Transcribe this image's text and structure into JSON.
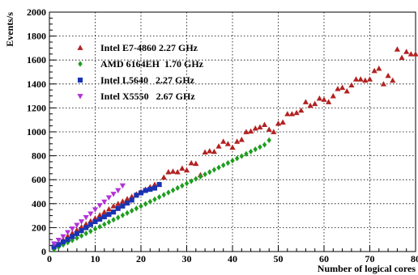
{
  "chart_data": {
    "type": "scatter",
    "title": "",
    "xlabel": "Number of logical cores",
    "ylabel": "Events/s",
    "xlim": [
      0,
      80
    ],
    "ylim": [
      0,
      2000
    ],
    "x_ticks": [
      0,
      10,
      20,
      30,
      40,
      50,
      60,
      70,
      80
    ],
    "y_ticks": [
      0,
      200,
      400,
      600,
      800,
      1000,
      1200,
      1400,
      1600,
      1800,
      2000
    ],
    "grid": true,
    "legend_position": "top-left",
    "series": [
      {
        "name": "Intel E7-4860 2.27 GHz",
        "marker": "triangle-up",
        "color": "#b22222",
        "points": [
          [
            1,
            57
          ],
          [
            2,
            70
          ],
          [
            3,
            100
          ],
          [
            4,
            130
          ],
          [
            5,
            155
          ],
          [
            6,
            180
          ],
          [
            7,
            205
          ],
          [
            8,
            230
          ],
          [
            9,
            255
          ],
          [
            10,
            280
          ],
          [
            11,
            305
          ],
          [
            12,
            330
          ],
          [
            13,
            355
          ],
          [
            14,
            380
          ],
          [
            15,
            400
          ],
          [
            16,
            420
          ],
          [
            17,
            440
          ],
          [
            18,
            460
          ],
          [
            19,
            480
          ],
          [
            20,
            500
          ],
          [
            21,
            520
          ],
          [
            22,
            540
          ],
          [
            23,
            560
          ],
          [
            24,
            560
          ],
          [
            25,
            620
          ],
          [
            26,
            665
          ],
          [
            27,
            670
          ],
          [
            28,
            665
          ],
          [
            29,
            695
          ],
          [
            30,
            680
          ],
          [
            31,
            740
          ],
          [
            32,
            735
          ],
          [
            33,
            640
          ],
          [
            34,
            830
          ],
          [
            35,
            840
          ],
          [
            36,
            835
          ],
          [
            37,
            880
          ],
          [
            38,
            920
          ],
          [
            39,
            900
          ],
          [
            40,
            870
          ],
          [
            41,
            920
          ],
          [
            42,
            935
          ],
          [
            43,
            1000
          ],
          [
            44,
            1005
          ],
          [
            45,
            1030
          ],
          [
            46,
            1040
          ],
          [
            47,
            1060
          ],
          [
            48,
            1020
          ],
          [
            49,
            1000
          ],
          [
            50,
            1070
          ],
          [
            51,
            1080
          ],
          [
            52,
            1150
          ],
          [
            53,
            1150
          ],
          [
            54,
            1160
          ],
          [
            55,
            1180
          ],
          [
            56,
            1250
          ],
          [
            57,
            1220
          ],
          [
            58,
            1235
          ],
          [
            59,
            1280
          ],
          [
            60,
            1270
          ],
          [
            61,
            1250
          ],
          [
            62,
            1300
          ],
          [
            63,
            1360
          ],
          [
            64,
            1370
          ],
          [
            65,
            1340
          ],
          [
            66,
            1390
          ],
          [
            67,
            1440
          ],
          [
            68,
            1440
          ],
          [
            69,
            1430
          ],
          [
            70,
            1440
          ],
          [
            71,
            1510
          ],
          [
            72,
            1530
          ],
          [
            73,
            1400
          ],
          [
            74,
            1470
          ],
          [
            75,
            1430
          ],
          [
            76,
            1690
          ],
          [
            77,
            1620
          ],
          [
            78,
            1670
          ],
          [
            79,
            1650
          ],
          [
            80,
            1650
          ]
        ]
      },
      {
        "name": "AMD 6164EH  1.70 GHz",
        "marker": "diamond",
        "color": "#1e9e1e",
        "points": [
          [
            1,
            18
          ],
          [
            2,
            37
          ],
          [
            3,
            56
          ],
          [
            4,
            75
          ],
          [
            5,
            94
          ],
          [
            6,
            113
          ],
          [
            7,
            132
          ],
          [
            8,
            151
          ],
          [
            9,
            170
          ],
          [
            10,
            189
          ],
          [
            11,
            208
          ],
          [
            12,
            227
          ],
          [
            13,
            246
          ],
          [
            14,
            265
          ],
          [
            15,
            284
          ],
          [
            16,
            303
          ],
          [
            17,
            322
          ],
          [
            18,
            341
          ],
          [
            19,
            360
          ],
          [
            20,
            379
          ],
          [
            21,
            398
          ],
          [
            22,
            417
          ],
          [
            23,
            436
          ],
          [
            24,
            455
          ],
          [
            25,
            474
          ],
          [
            26,
            493
          ],
          [
            27,
            512
          ],
          [
            28,
            531
          ],
          [
            29,
            550
          ],
          [
            30,
            569
          ],
          [
            31,
            588
          ],
          [
            32,
            607
          ],
          [
            33,
            626
          ],
          [
            34,
            645
          ],
          [
            35,
            664
          ],
          [
            36,
            683
          ],
          [
            37,
            702
          ],
          [
            38,
            721
          ],
          [
            39,
            740
          ],
          [
            40,
            759
          ],
          [
            41,
            778
          ],
          [
            42,
            797
          ],
          [
            43,
            816
          ],
          [
            44,
            835
          ],
          [
            45,
            854
          ],
          [
            46,
            873
          ],
          [
            47,
            892
          ],
          [
            48,
            930
          ]
        ]
      },
      {
        "name": "Intel L5640   2.27 GHz",
        "marker": "square",
        "color": "#1a33b3",
        "points": [
          [
            1,
            38
          ],
          [
            2,
            58
          ],
          [
            3,
            80
          ],
          [
            4,
            100
          ],
          [
            5,
            125
          ],
          [
            6,
            150
          ],
          [
            7,
            175
          ],
          [
            8,
            200
          ],
          [
            9,
            225
          ],
          [
            10,
            250
          ],
          [
            11,
            270
          ],
          [
            12,
            290
          ],
          [
            13,
            310
          ],
          [
            14,
            330
          ],
          [
            15,
            360
          ],
          [
            16,
            380
          ],
          [
            17,
            405
          ],
          [
            18,
            430
          ],
          [
            19,
            470
          ],
          [
            20,
            490
          ],
          [
            21,
            510
          ],
          [
            22,
            520
          ],
          [
            23,
            530
          ],
          [
            24,
            560
          ]
        ]
      },
      {
        "name": "Intel X5550   2.67 GHz",
        "marker": "triangle-down",
        "color": "#b233d9",
        "points": [
          [
            1,
            65
          ],
          [
            2,
            95
          ],
          [
            3,
            125
          ],
          [
            4,
            160
          ],
          [
            5,
            190
          ],
          [
            6,
            220
          ],
          [
            7,
            250
          ],
          [
            8,
            285
          ],
          [
            9,
            315
          ],
          [
            10,
            350
          ],
          [
            11,
            385
          ],
          [
            12,
            415
          ],
          [
            13,
            450
          ],
          [
            14,
            480
          ],
          [
            15,
            510
          ],
          [
            16,
            550
          ]
        ]
      }
    ]
  }
}
